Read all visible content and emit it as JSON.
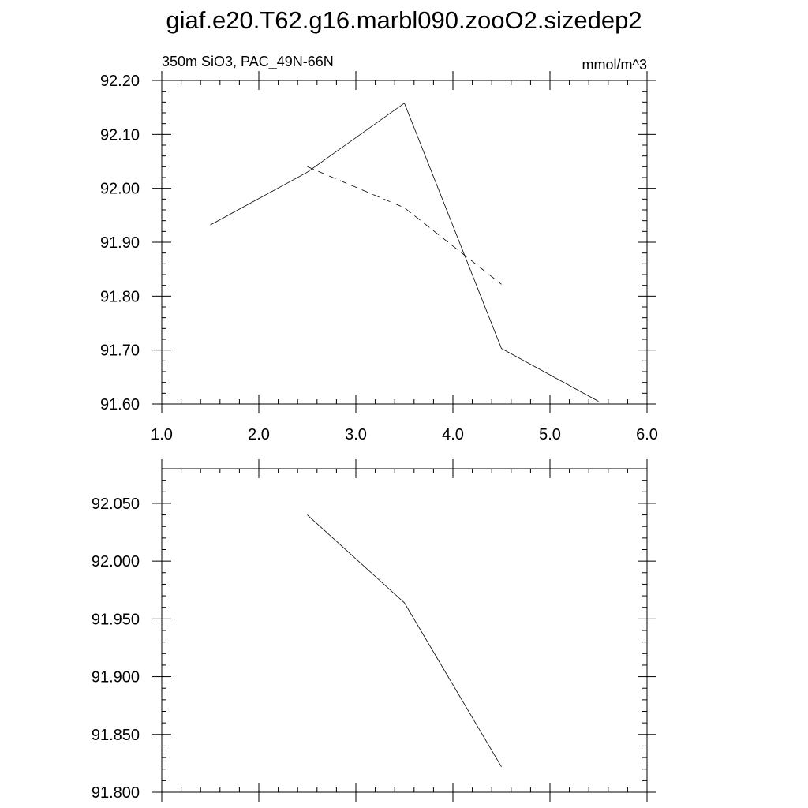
{
  "chart_data": [
    {
      "type": "line",
      "title": "giaf.e20.T62.g16.marbl090.zooO2.sizedep2",
      "left_label": "350m SiO3, PAC_49N-66N",
      "right_label": "mmol/m^3",
      "xlim": [
        1.0,
        6.0
      ],
      "ylim": [
        91.6,
        92.2
      ],
      "x_ticks": [
        "1.0",
        "2.0",
        "3.0",
        "4.0",
        "5.0",
        "6.0"
      ],
      "y_ticks": [
        "91.60",
        "91.70",
        "91.80",
        "91.90",
        "92.00",
        "92.10",
        "92.20"
      ],
      "series": [
        {
          "style": "solid",
          "x": [
            1.5,
            2.5,
            3.5,
            4.5,
            5.5
          ],
          "y": [
            91.932,
            92.03,
            92.158,
            91.703,
            91.605
          ]
        },
        {
          "style": "dashed",
          "x": [
            2.5,
            3.5,
            4.5
          ],
          "y": [
            92.04,
            91.964,
            91.822
          ]
        }
      ]
    },
    {
      "type": "line",
      "xlim": [
        1.0,
        6.0
      ],
      "ylim": [
        91.8,
        92.08
      ],
      "y_ticks": [
        "91.800",
        "91.850",
        "91.900",
        "91.950",
        "92.000",
        "92.050"
      ],
      "series": [
        {
          "style": "solid",
          "x": [
            2.5,
            3.5,
            4.5
          ],
          "y": [
            92.04,
            91.964,
            91.822
          ]
        }
      ]
    }
  ]
}
